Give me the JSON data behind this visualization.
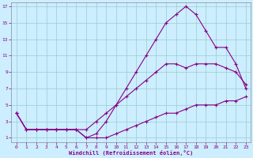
{
  "xlabel": "Windchill (Refroidissement éolien,°C)",
  "bg_color": "#cceeff",
  "line_color": "#880088",
  "grid_color": "#99cccc",
  "xlim": [
    -0.5,
    23.5
  ],
  "ylim": [
    0.5,
    17.5
  ],
  "xticks": [
    0,
    1,
    2,
    3,
    4,
    5,
    6,
    7,
    8,
    9,
    10,
    11,
    12,
    13,
    14,
    15,
    16,
    17,
    18,
    19,
    20,
    21,
    22,
    23
  ],
  "yticks": [
    1,
    3,
    5,
    7,
    9,
    11,
    13,
    15,
    17
  ],
  "curve1_x": [
    0,
    1,
    2,
    3,
    4,
    5,
    6,
    7,
    8,
    9,
    10,
    11,
    12,
    13,
    14,
    15,
    16,
    17,
    18,
    19,
    20,
    21,
    22,
    23
  ],
  "curve1_y": [
    4,
    2,
    2,
    2,
    2,
    2,
    2,
    1,
    1,
    1,
    1.5,
    2,
    2.5,
    3,
    3.5,
    4,
    4,
    4.5,
    5,
    5,
    5,
    5.5,
    5.5,
    6
  ],
  "curve2_x": [
    0,
    1,
    2,
    3,
    4,
    5,
    6,
    7,
    8,
    9,
    10,
    11,
    12,
    13,
    14,
    15,
    16,
    17,
    18,
    19,
    20,
    21,
    22,
    23
  ],
  "curve2_y": [
    4,
    2,
    2,
    2,
    2,
    2,
    2,
    2,
    3,
    4,
    5,
    6,
    7,
    8,
    9,
    10,
    10,
    9.5,
    10,
    10,
    10,
    9.5,
    9,
    7.5
  ],
  "curve3_x": [
    0,
    1,
    2,
    3,
    4,
    5,
    6,
    7,
    8,
    9,
    10,
    11,
    12,
    13,
    14,
    15,
    16,
    17,
    18,
    19,
    20,
    21,
    22,
    23
  ],
  "curve3_y": [
    4,
    2,
    2,
    2,
    2,
    2,
    2,
    1,
    1.5,
    3,
    5,
    7,
    9,
    11,
    13,
    15,
    16,
    17,
    16,
    14,
    12,
    12,
    10,
    7
  ]
}
